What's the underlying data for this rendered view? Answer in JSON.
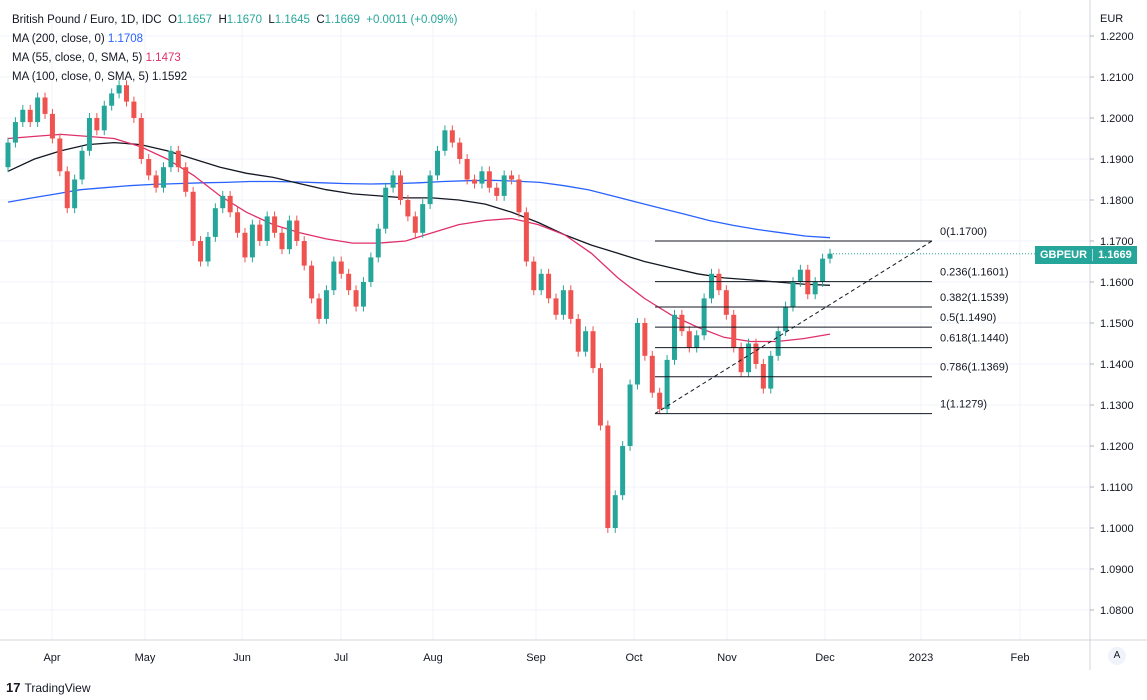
{
  "header": {
    "symbol_line": "British Pound / Euro, 1D, IDC",
    "o_label": "O",
    "o_value": "1.1657",
    "h_label": "H",
    "h_value": "1.1670",
    "l_label": "L",
    "l_value": "1.1645",
    "c_label": "C",
    "c_value": "1.1669",
    "change": "+0.0011 (+0.09%)",
    "ma200_label": "MA (200, close, 0)",
    "ma200_value": "1.1708",
    "ma55_label": "MA (55, close, 0, SMA, 5)",
    "ma55_value": "1.1473",
    "ma100_label": "MA (100, close, 0, SMA, 5)",
    "ma100_value": "1.1592"
  },
  "currency_label": "EUR",
  "price_tag": {
    "symbol": "GBPEUR",
    "price": "1.1669"
  },
  "auto_button": "A",
  "footer": {
    "brand": "TradingView",
    "logo": "17"
  },
  "colors": {
    "up": "#26a69a",
    "down": "#ef5350",
    "ma200": "#2962ff",
    "ma55": "#e0306a",
    "ma100": "#131722",
    "grid": "#f0f3fa"
  },
  "chart_data": {
    "type": "candlestick",
    "title": "British Pound / Euro, 1D, IDC",
    "ylim": [
      1.075,
      1.225
    ],
    "y_ticks": [
      "1.0800",
      "1.0900",
      "1.1000",
      "1.1100",
      "1.1200",
      "1.1300",
      "1.1400",
      "1.1500",
      "1.1600",
      "1.1700",
      "1.1800",
      "1.1900",
      "1.2000",
      "1.2100",
      "1.2200"
    ],
    "x_labels": [
      "Apr",
      "May",
      "Jun",
      "Jul",
      "Aug",
      "Sep",
      "Oct",
      "Nov",
      "Dec",
      "2023",
      "Feb"
    ],
    "fibonacci": {
      "levels": [
        {
          "label": "0(1.1700)",
          "value": 1.17
        },
        {
          "label": "0.236(1.1601)",
          "value": 1.1601
        },
        {
          "label": "0.382(1.1539)",
          "value": 1.1539
        },
        {
          "label": "0.5(1.1490)",
          "value": 1.149
        },
        {
          "label": "0.618(1.1440)",
          "value": 1.144
        },
        {
          "label": "0.786(1.1369)",
          "value": 1.1369
        },
        {
          "label": "1(1.1279)",
          "value": 1.1279
        }
      ],
      "trend_from": 1.1279,
      "trend_to": 1.17
    },
    "ma200": [
      1.1795,
      1.1805,
      1.1815,
      1.1825,
      1.183,
      1.1835,
      1.1838,
      1.184,
      1.1842,
      1.1843,
      1.1845,
      1.1845,
      1.1844,
      1.1842,
      1.184,
      1.1839,
      1.184,
      1.1842,
      1.1845,
      1.1847,
      1.1848,
      1.1846,
      1.1843,
      1.1835,
      1.1825,
      1.181,
      1.1795,
      1.178,
      1.1765,
      1.175,
      1.1738,
      1.1728,
      1.172,
      1.1712,
      1.1708
    ],
    "ma100": [
      1.187,
      1.19,
      1.192,
      1.1935,
      1.194,
      1.1935,
      1.192,
      1.19,
      1.188,
      1.1865,
      1.1855,
      1.184,
      1.1825,
      1.1815,
      1.181,
      1.1805,
      1.1805,
      1.18,
      1.179,
      1.177,
      1.1745,
      1.1715,
      1.169,
      1.167,
      1.165,
      1.1635,
      1.162,
      1.161,
      1.1605,
      1.16,
      1.1595,
      1.1592
    ],
    "ma55": [
      1.195,
      1.1955,
      1.196,
      1.1955,
      1.195,
      1.193,
      1.19,
      1.186,
      1.181,
      1.177,
      1.174,
      1.172,
      1.1705,
      1.1695,
      1.1695,
      1.17,
      1.172,
      1.174,
      1.175,
      1.1755,
      1.174,
      1.1715,
      1.167,
      1.161,
      1.156,
      1.152,
      1.149,
      1.1465,
      1.1455,
      1.1455,
      1.1462,
      1.1473
    ],
    "candles": [
      [
        1.188,
        1.194
      ],
      [
        1.194,
        1.199
      ],
      [
        1.199,
        1.202
      ],
      [
        1.202,
        1.199
      ],
      [
        1.199,
        1.205
      ],
      [
        1.205,
        1.201
      ],
      [
        1.201,
        1.195
      ],
      [
        1.195,
        1.187
      ],
      [
        1.187,
        1.178
      ],
      [
        1.178,
        1.185
      ],
      [
        1.185,
        1.192
      ],
      [
        1.192,
        1.2
      ],
      [
        1.2,
        1.197
      ],
      [
        1.197,
        1.203
      ],
      [
        1.203,
        1.206
      ],
      [
        1.206,
        1.208
      ],
      [
        1.208,
        1.204
      ],
      [
        1.204,
        1.2
      ],
      [
        1.2,
        1.19
      ],
      [
        1.19,
        1.186
      ],
      [
        1.186,
        1.183
      ],
      [
        1.183,
        1.188
      ],
      [
        1.188,
        1.192
      ],
      [
        1.192,
        1.188
      ],
      [
        1.188,
        1.182
      ],
      [
        1.182,
        1.17
      ],
      [
        1.17,
        1.165
      ],
      [
        1.165,
        1.171
      ],
      [
        1.171,
        1.178
      ],
      [
        1.178,
        1.181
      ],
      [
        1.181,
        1.177
      ],
      [
        1.177,
        1.172
      ],
      [
        1.172,
        1.166
      ],
      [
        1.166,
        1.174
      ],
      [
        1.174,
        1.17
      ],
      [
        1.17,
        1.176
      ],
      [
        1.176,
        1.172
      ],
      [
        1.172,
        1.168
      ],
      [
        1.168,
        1.175
      ],
      [
        1.175,
        1.17
      ],
      [
        1.17,
        1.164
      ],
      [
        1.164,
        1.156
      ],
      [
        1.156,
        1.151
      ],
      [
        1.151,
        1.158
      ],
      [
        1.158,
        1.165
      ],
      [
        1.165,
        1.162
      ],
      [
        1.162,
        1.158
      ],
      [
        1.158,
        1.154
      ],
      [
        1.154,
        1.16
      ],
      [
        1.16,
        1.166
      ],
      [
        1.166,
        1.173
      ],
      [
        1.173,
        1.183
      ],
      [
        1.183,
        1.186
      ],
      [
        1.186,
        1.18
      ],
      [
        1.18,
        1.176
      ],
      [
        1.176,
        1.172
      ],
      [
        1.172,
        1.179
      ],
      [
        1.179,
        1.186
      ],
      [
        1.186,
        1.192
      ],
      [
        1.192,
        1.197
      ],
      [
        1.197,
        1.194
      ],
      [
        1.194,
        1.19
      ],
      [
        1.19,
        1.185
      ],
      [
        1.185,
        1.184
      ],
      [
        1.184,
        1.187
      ],
      [
        1.187,
        1.183
      ],
      [
        1.183,
        1.181
      ],
      [
        1.181,
        1.186
      ],
      [
        1.186,
        1.185
      ],
      [
        1.185,
        1.177
      ],
      [
        1.177,
        1.165
      ],
      [
        1.165,
        1.158
      ],
      [
        1.158,
        1.162
      ],
      [
        1.162,
        1.156
      ],
      [
        1.156,
        1.152
      ],
      [
        1.152,
        1.158
      ],
      [
        1.158,
        1.151
      ],
      [
        1.151,
        1.143
      ],
      [
        1.143,
        1.148
      ],
      [
        1.148,
        1.139
      ],
      [
        1.139,
        1.125
      ],
      [
        1.125,
        1.1
      ],
      [
        1.1,
        1.108
      ],
      [
        1.108,
        1.12
      ],
      [
        1.12,
        1.135
      ],
      [
        1.135,
        1.15
      ],
      [
        1.15,
        1.142
      ],
      [
        1.142,
        1.133
      ],
      [
        1.133,
        1.129
      ],
      [
        1.129,
        1.141
      ],
      [
        1.141,
        1.152
      ],
      [
        1.152,
        1.148
      ],
      [
        1.148,
        1.144
      ],
      [
        1.144,
        1.147
      ],
      [
        1.147,
        1.156
      ],
      [
        1.156,
        1.162
      ],
      [
        1.162,
        1.158
      ],
      [
        1.158,
        1.152
      ],
      [
        1.152,
        1.144
      ],
      [
        1.144,
        1.138
      ],
      [
        1.138,
        1.145
      ],
      [
        1.145,
        1.14
      ],
      [
        1.14,
        1.134
      ],
      [
        1.134,
        1.142
      ],
      [
        1.142,
        1.148
      ],
      [
        1.148,
        1.154
      ],
      [
        1.154,
        1.16
      ],
      [
        1.16,
        1.163
      ],
      [
        1.163,
        1.157
      ],
      [
        1.157,
        1.16
      ],
      [
        1.16,
        1.1657
      ],
      [
        1.1657,
        1.1669
      ]
    ]
  }
}
